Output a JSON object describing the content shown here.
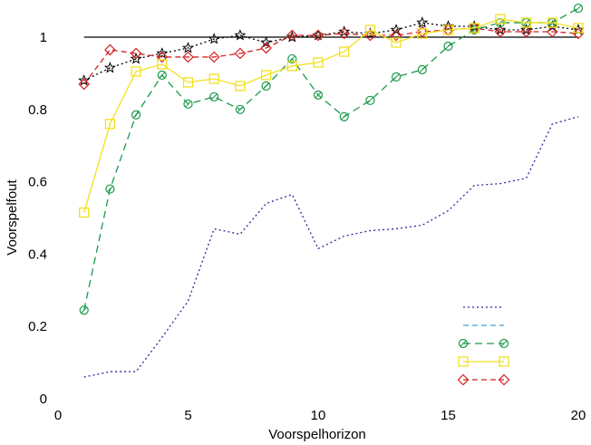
{
  "chart_data": {
    "type": "line",
    "xlabel": "Voorspelhorizon",
    "ylabel": "Voorspelfout",
    "xlim": [
      0,
      20
    ],
    "ylim": [
      0,
      1.1
    ],
    "xticks": [
      0,
      5,
      10,
      15,
      20
    ],
    "yticks": [
      0,
      0.2,
      0.4,
      0.6,
      0.8,
      1
    ],
    "xtick_labels": [
      "0",
      "5",
      "10",
      "15",
      "20"
    ],
    "ytick_labels": [
      "0",
      "0.2",
      "0.4",
      "0.6",
      "0.8",
      "1"
    ],
    "reference_line": {
      "y": 1,
      "x_range": [
        1,
        20
      ],
      "color": "#000000"
    },
    "x": [
      1,
      2,
      3,
      4,
      5,
      6,
      7,
      8,
      9,
      10,
      11,
      12,
      13,
      14,
      15,
      16,
      17,
      18,
      19,
      20
    ],
    "series": [
      {
        "color": "#2a2a9a",
        "dash": "2,3",
        "marker": "none",
        "values": [
          0.06,
          0.075,
          0.075,
          0.17,
          0.27,
          0.47,
          0.455,
          0.54,
          0.565,
          0.415,
          0.45,
          0.465,
          0.47,
          0.48,
          0.52,
          0.59,
          0.595,
          0.61,
          0.76,
          0.78
        ]
      },
      {
        "color": "#000000",
        "dash": "2,3",
        "marker": "star",
        "values": [
          0.88,
          0.915,
          0.94,
          0.955,
          0.97,
          0.995,
          1.005,
          0.985,
          1.0,
          1.005,
          1.015,
          1.01,
          1.02,
          1.04,
          1.03,
          1.03,
          1.02,
          1.02,
          1.03,
          1.02
        ]
      },
      {
        "color": "#d42020",
        "dash": "6,4",
        "marker": "diamond",
        "values": [
          0.87,
          0.965,
          0.955,
          0.945,
          0.945,
          0.945,
          0.955,
          0.97,
          1.005,
          1.005,
          1.01,
          1.005,
          1.005,
          1.015,
          1.02,
          1.025,
          1.015,
          1.015,
          1.015,
          1.01
        ]
      },
      {
        "color": "#1a9a4a",
        "dash": "8,5",
        "marker": "circle",
        "values": [
          0.245,
          0.58,
          0.785,
          0.895,
          0.815,
          0.835,
          0.8,
          0.865,
          0.94,
          0.84,
          0.78,
          0.825,
          0.89,
          0.91,
          0.975,
          1.02,
          1.04,
          1.04,
          1.04,
          1.08
        ]
      },
      {
        "color": "#f2e020",
        "dash": "none",
        "marker": "square",
        "values": [
          0.515,
          0.76,
          0.905,
          0.925,
          0.875,
          0.885,
          0.865,
          0.895,
          0.92,
          0.93,
          0.96,
          1.02,
          0.985,
          1.01,
          1.02,
          1.025,
          1.05,
          1.04,
          1.04,
          1.025
        ]
      }
    ],
    "legend": {
      "placement": "bottom-right",
      "entries": [
        {
          "color": "#2a2a9a",
          "dash": "2,3",
          "marker": "none"
        },
        {
          "color": "#3aa6d8",
          "dash": "6,4",
          "marker": "none"
        },
        {
          "color": "#1a9a4a",
          "dash": "8,5",
          "marker": "circle"
        },
        {
          "color": "#f2e020",
          "dash": "none",
          "marker": "square"
        },
        {
          "color": "#d42020",
          "dash": "6,4",
          "marker": "diamond"
        }
      ]
    }
  }
}
